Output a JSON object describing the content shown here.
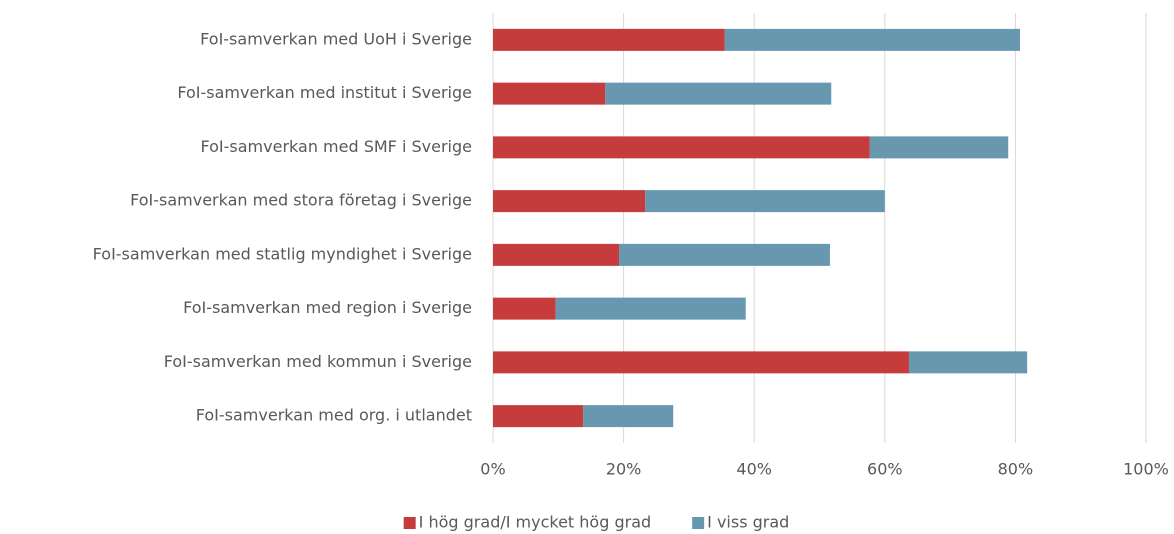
{
  "chart_data": {
    "type": "stacked_bar_horizontal",
    "categories": [
      "FoI-samverkan med UoH i Sverige",
      "FoI-samverkan med institut i Sverige",
      "FoI-samverkan med SMF i Sverige",
      "FoI-samverkan med stora företag i Sverige",
      "FoI-samverkan med statlig myndighet i Sverige",
      "FoI-samverkan med region i Sverige",
      "FoI-samverkan med kommun i Sverige",
      "FoI-samverkan med org. i utlandet"
    ],
    "series": [
      {
        "name": "I hög grad/I mycket hög grad",
        "color": "#c63b3b",
        "values": [
          35.5,
          17.2,
          57.7,
          23.3,
          19.3,
          9.6,
          63.7,
          13.8
        ]
      },
      {
        "name": "I viss grad",
        "color": "#6798b0",
        "values": [
          45.2,
          34.6,
          21.2,
          36.7,
          32.3,
          29.1,
          18.1,
          13.8
        ]
      }
    ],
    "xlim": [
      0,
      100
    ],
    "xticks": [
      {
        "value": 0,
        "label": "0%"
      },
      {
        "value": 20,
        "label": "20%"
      },
      {
        "value": 40,
        "label": "40%"
      },
      {
        "value": 60,
        "label": "60%"
      },
      {
        "value": 80,
        "label": "80%"
      },
      {
        "value": 100,
        "label": "100%"
      }
    ],
    "grid": true,
    "legend": "bottom"
  }
}
